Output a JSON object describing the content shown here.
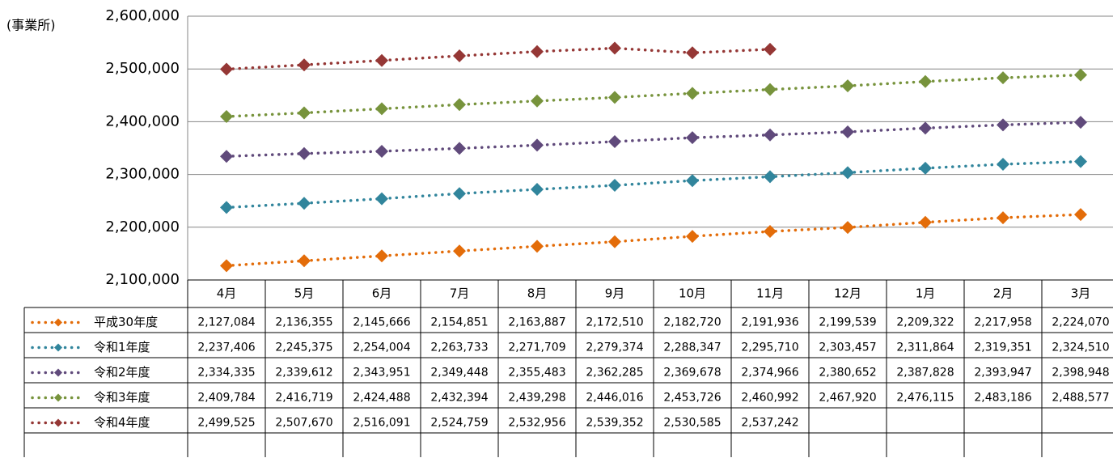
{
  "chart_data": {
    "type": "line",
    "y_label": "(事業所)",
    "categories": [
      "4月",
      "5月",
      "6月",
      "7月",
      "8月",
      "9月",
      "10月",
      "11月",
      "12月",
      "1月",
      "2月",
      "3月"
    ],
    "ylim": [
      2100000,
      2600000
    ],
    "yticks": [
      {
        "value": 2100000,
        "label": "2,100,000"
      },
      {
        "value": 2200000,
        "label": "2,200,000"
      },
      {
        "value": 2300000,
        "label": "2,300,000"
      },
      {
        "value": 2400000,
        "label": "2,400,000"
      },
      {
        "value": 2500000,
        "label": "2,500,000"
      },
      {
        "value": 2600000,
        "label": "2,600,000"
      }
    ],
    "grid": true,
    "series": [
      {
        "name": "平成30年度",
        "color": "#e36c09",
        "values": [
          2127084,
          2136355,
          2145666,
          2154851,
          2163887,
          2172510,
          2182720,
          2191936,
          2199539,
          2209322,
          2217958,
          2224070
        ],
        "value_labels": [
          "2,127,084",
          "2,136,355",
          "2,145,666",
          "2,154,851",
          "2,163,887",
          "2,172,510",
          "2,182,720",
          "2,191,936",
          "2,199,539",
          "2,209,322",
          "2,217,958",
          "2,224,070"
        ]
      },
      {
        "name": "令和1年度",
        "color": "#31859c",
        "values": [
          2237406,
          2245375,
          2254004,
          2263733,
          2271709,
          2279374,
          2288347,
          2295710,
          2303457,
          2311864,
          2319351,
          2324510
        ],
        "value_labels": [
          "2,237,406",
          "2,245,375",
          "2,254,004",
          "2,263,733",
          "2,271,709",
          "2,279,374",
          "2,288,347",
          "2,295,710",
          "2,303,457",
          "2,311,864",
          "2,319,351",
          "2,324,510"
        ]
      },
      {
        "name": "令和2年度",
        "color": "#604a7b",
        "values": [
          2334335,
          2339612,
          2343951,
          2349448,
          2355483,
          2362285,
          2369678,
          2374966,
          2380652,
          2387828,
          2393947,
          2398948
        ],
        "value_labels": [
          "2,334,335",
          "2,339,612",
          "2,343,951",
          "2,349,448",
          "2,355,483",
          "2,362,285",
          "2,369,678",
          "2,374,966",
          "2,380,652",
          "2,387,828",
          "2,393,947",
          "2,398,948"
        ]
      },
      {
        "name": "令和3年度",
        "color": "#77933c",
        "values": [
          2409784,
          2416719,
          2424488,
          2432394,
          2439298,
          2446016,
          2453726,
          2460992,
          2467920,
          2476115,
          2483186,
          2488577
        ],
        "value_labels": [
          "2,409,784",
          "2,416,719",
          "2,424,488",
          "2,432,394",
          "2,439,298",
          "2,446,016",
          "2,453,726",
          "2,460,992",
          "2,467,920",
          "2,476,115",
          "2,483,186",
          "2,488,577"
        ]
      },
      {
        "name": "令和4年度",
        "color": "#953735",
        "values": [
          2499525,
          2507670,
          2516091,
          2524759,
          2532956,
          2539352,
          2530585,
          2537242,
          null,
          null,
          null,
          null
        ],
        "value_labels": [
          "2,499,525",
          "2,507,670",
          "2,516,091",
          "2,524,759",
          "2,532,956",
          "2,539,352",
          "2,530,585",
          "2,537,242",
          null,
          null,
          null,
          null
        ]
      }
    ]
  }
}
